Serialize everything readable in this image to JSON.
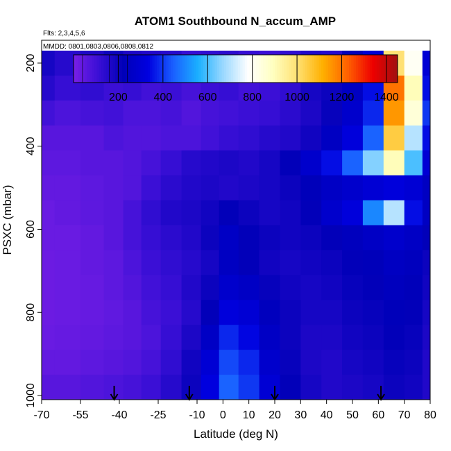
{
  "chart_data": {
    "type": "heatmap",
    "title": "ATOM1 Southbound N_accum_AMP",
    "flights_note": "Flts: 2,3,4,5,6",
    "dates_note": "MMDD: 0801,0803,0806,0808,0812",
    "xlabel": "Latitude (deg N)",
    "ylabel": "PSXC (mbar)",
    "xlim": [
      -70,
      80
    ],
    "ylim": [
      1010,
      145
    ],
    "x_ticks": [
      -70,
      -55,
      -40,
      -25,
      -10,
      0,
      10,
      20,
      30,
      40,
      50,
      60,
      70,
      80
    ],
    "y_ticks": [
      200,
      400,
      600,
      800,
      1000
    ],
    "colorbar": {
      "range": [
        0,
        1450
      ],
      "ticks": [
        200,
        400,
        600,
        800,
        1000,
        1200,
        1400
      ],
      "colors": [
        "#7a1fe6",
        "#3a0fd6",
        "#0000b8",
        "#0000e0",
        "#1a60ff",
        "#1ab0ff",
        "#9ad8ff",
        "#ffffff",
        "#ffffc0",
        "#ffe070",
        "#ffb000",
        "#ff6000",
        "#ee0000",
        "#a01010"
      ]
    },
    "lat_bins": [
      -70,
      -60,
      -50,
      -42,
      -35,
      -28,
      -20,
      -12,
      -5,
      2,
      10,
      18,
      26,
      34,
      42,
      50,
      58,
      66,
      74,
      80
    ],
    "pressure_bins": [
      200,
      260,
      320,
      380,
      440,
      500,
      560,
      620,
      680,
      740,
      800,
      860,
      920,
      980
    ],
    "values": [
      [
        180,
        150,
        170,
        200,
        170,
        160,
        150,
        120,
        130,
        140,
        120,
        110,
        130,
        160,
        150,
        220,
        300,
        1000,
        800,
        300
      ],
      [
        150,
        120,
        130,
        110,
        120,
        100,
        110,
        90,
        110,
        120,
        100,
        110,
        130,
        180,
        200,
        250,
        350,
        1200,
        900,
        350
      ],
      [
        100,
        80,
        90,
        100,
        80,
        80,
        90,
        70,
        90,
        100,
        110,
        120,
        140,
        170,
        210,
        280,
        380,
        1150,
        850,
        400
      ],
      [
        60,
        60,
        60,
        80,
        70,
        70,
        80,
        80,
        100,
        120,
        130,
        150,
        160,
        190,
        250,
        320,
        450,
        1050,
        700,
        350
      ],
      [
        50,
        50,
        60,
        60,
        70,
        90,
        120,
        150,
        160,
        170,
        160,
        180,
        220,
        280,
        350,
        450,
        650,
        900,
        600,
        300
      ],
      [
        40,
        40,
        50,
        60,
        70,
        110,
        140,
        160,
        170,
        160,
        170,
        180,
        200,
        230,
        260,
        280,
        300,
        320,
        300,
        250
      ],
      [
        30,
        40,
        50,
        60,
        90,
        130,
        160,
        170,
        190,
        220,
        200,
        180,
        190,
        220,
        280,
        320,
        500,
        700,
        350,
        250
      ],
      [
        30,
        30,
        40,
        60,
        90,
        120,
        140,
        160,
        200,
        260,
        220,
        200,
        190,
        200,
        220,
        240,
        260,
        280,
        260,
        220
      ],
      [
        25,
        30,
        40,
        50,
        80,
        110,
        130,
        150,
        180,
        250,
        220,
        190,
        180,
        190,
        200,
        220,
        230,
        250,
        240,
        200
      ],
      [
        25,
        30,
        35,
        50,
        70,
        100,
        120,
        160,
        200,
        280,
        260,
        210,
        190,
        180,
        190,
        210,
        220,
        240,
        230,
        190
      ],
      [
        25,
        30,
        35,
        45,
        60,
        90,
        110,
        150,
        220,
        320,
        300,
        240,
        200,
        180,
        180,
        200,
        210,
        230,
        220,
        180
      ],
      [
        30,
        35,
        40,
        50,
        60,
        80,
        120,
        170,
        260,
        380,
        340,
        260,
        200,
        170,
        170,
        190,
        200,
        220,
        210,
        170
      ],
      [
        40,
        40,
        50,
        60,
        70,
        90,
        130,
        190,
        300,
        420,
        380,
        280,
        210,
        170,
        160,
        180,
        190,
        210,
        200,
        160
      ],
      [
        60,
        60,
        70,
        80,
        90,
        110,
        150,
        200,
        330,
        450,
        400,
        300,
        220,
        180,
        160,
        170,
        180,
        200,
        190,
        160
      ]
    ],
    "flight_markers_lat": [
      -42,
      -13,
      20,
      61
    ]
  }
}
